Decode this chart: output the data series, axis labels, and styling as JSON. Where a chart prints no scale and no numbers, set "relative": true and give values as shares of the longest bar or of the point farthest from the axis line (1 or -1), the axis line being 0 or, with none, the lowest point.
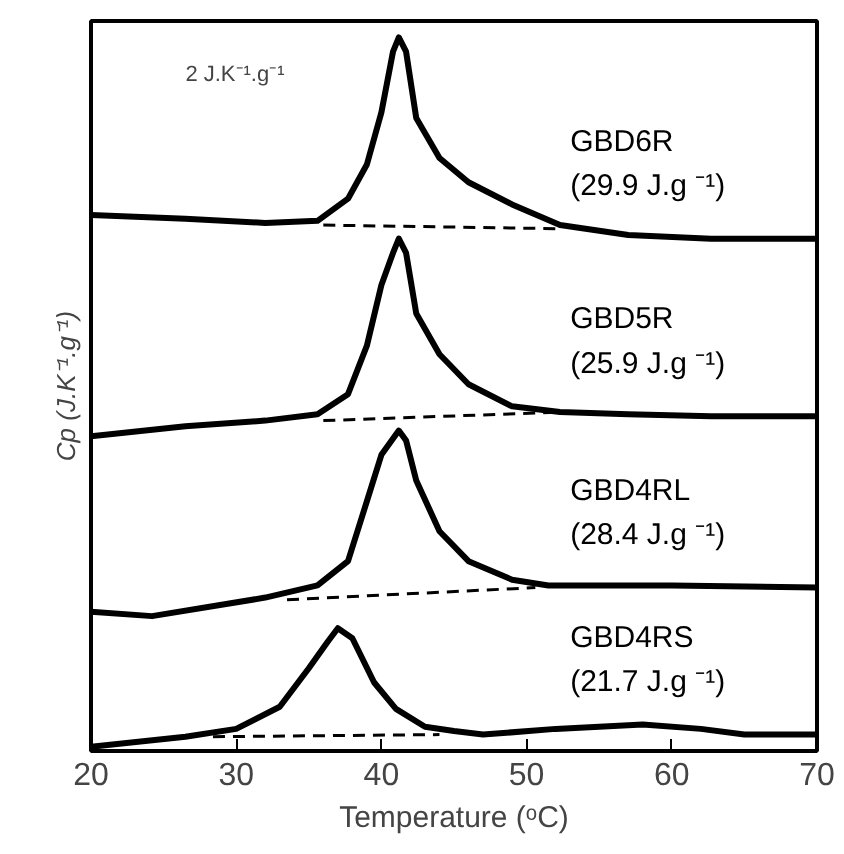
{
  "chart_data": {
    "type": "line",
    "relative": true,
    "xlabel": "Temperature (ᵒC)",
    "ylabel": "Cp (J.K⁻¹.g⁻¹)",
    "annotations": [
      "2 J.K⁻¹.g⁻¹"
    ],
    "xlim": [
      20,
      70
    ],
    "xticks": [
      20,
      30,
      40,
      50,
      60,
      70
    ],
    "tick_labels": "x",
    "grid": false,
    "legend": false,
    "line_style": "solid",
    "marker": "none",
    "series": [
      {
        "name": "GBD6R\n(29.9 J.g ⁻¹)",
        "color": "#000000",
        "x": [
          20,
          26.5,
          32,
          35.6,
          37.7,
          39,
          40,
          40.8,
          41.2,
          41.7,
          42.4,
          44,
          46,
          49,
          52.3,
          57,
          62.7,
          70
        ],
        "values": [
          0.751,
          0.746,
          0.74,
          0.743,
          0.774,
          0.822,
          0.895,
          0.98,
          1.0,
          0.98,
          0.887,
          0.831,
          0.797,
          0.766,
          0.737,
          0.723,
          0.718,
          0.718
        ]
      },
      {
        "name": "GBD5R\n(25.9 J.g ⁻¹)",
        "color": "#000000",
        "x": [
          20,
          26.5,
          32,
          35.6,
          37.7,
          39,
          40,
          40.8,
          41.2,
          41.7,
          42.4,
          44,
          46,
          49,
          52.3,
          57,
          62.7,
          70
        ],
        "values": [
          0.441,
          0.455,
          0.463,
          0.472,
          0.5,
          0.568,
          0.653,
          0.698,
          0.718,
          0.698,
          0.613,
          0.556,
          0.514,
          0.483,
          0.475,
          0.472,
          0.469,
          0.469
        ]
      },
      {
        "name": "GBD4RL\n(28.4 J.g ⁻¹)",
        "color": "#000000",
        "x": [
          20,
          24.2,
          32,
          35.6,
          37.7,
          39,
          40,
          41.2,
          41.7,
          42.4,
          44,
          46,
          49,
          51.5,
          60,
          70
        ],
        "values": [
          0.195,
          0.189,
          0.215,
          0.232,
          0.266,
          0.35,
          0.415,
          0.449,
          0.435,
          0.379,
          0.308,
          0.266,
          0.24,
          0.232,
          0.232,
          0.229
        ]
      },
      {
        "name": "GBD4RS\n(21.7 J.g ⁻¹)",
        "color": "#000000",
        "x": [
          20,
          26.5,
          30,
          33,
          35,
          36.3,
          37,
          38,
          39.5,
          41,
          43,
          45,
          47,
          52,
          58,
          62,
          65,
          70
        ],
        "values": [
          0.006,
          0.02,
          0.031,
          0.062,
          0.116,
          0.153,
          0.172,
          0.158,
          0.096,
          0.059,
          0.034,
          0.028,
          0.023,
          0.031,
          0.037,
          0.031,
          0.023,
          0.023
        ]
      },
      {
        "color": "#000000",
        "line_style": "dashed",
        "x": [
          36,
          52
        ],
        "values": [
          0.737,
          0.732
        ]
      },
      {
        "color": "#000000",
        "line_style": "dashed",
        "x": [
          36,
          52.5
        ],
        "values": [
          0.463,
          0.475
        ]
      },
      {
        "color": "#000000",
        "line_style": "dashed",
        "x": [
          33.5,
          50.6
        ],
        "values": [
          0.212,
          0.229
        ]
      },
      {
        "color": "#000000",
        "line_style": "dashed",
        "x": [
          28.4,
          44
        ],
        "values": [
          0.02,
          0.023
        ]
      }
    ]
  }
}
